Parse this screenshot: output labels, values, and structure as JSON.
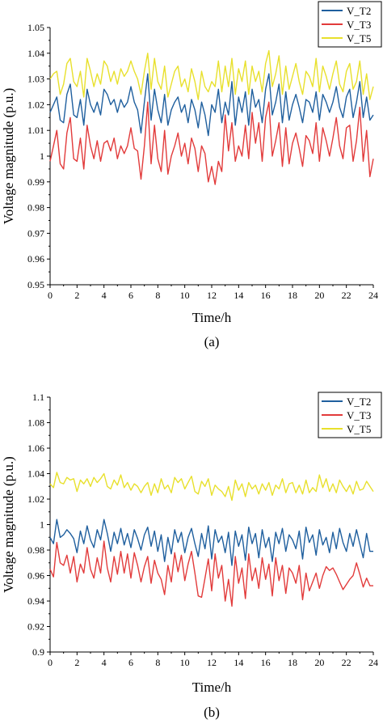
{
  "chart_data": [
    {
      "type": "line",
      "panel_label": "(a)",
      "xlabel": "Time/h",
      "ylabel": "Voltage magnitude (p.u.)",
      "xlim": [
        0,
        24
      ],
      "ylim": [
        0.95,
        1.05
      ],
      "xticks": [
        0,
        2,
        4,
        6,
        8,
        10,
        12,
        14,
        16,
        18,
        20,
        22,
        24
      ],
      "xtick_labels": [
        "0",
        "2",
        "4",
        "6",
        "8",
        "10",
        "12",
        "14",
        "16",
        "18",
        "20",
        "22",
        "24"
      ],
      "yticks": [
        0.95,
        0.96,
        0.97,
        0.98,
        0.99,
        1.0,
        1.01,
        1.02,
        1.03,
        1.04,
        1.05
      ],
      "ytick_labels": [
        "0.95",
        "0.96",
        "0.97",
        "0.98",
        "0.99",
        "1",
        "1.01",
        "1.02",
        "1.03",
        "1.04",
        "1.05"
      ],
      "legend_position": "top-right",
      "x": [
        0.0,
        0.25,
        0.5,
        0.75,
        1.0,
        1.25,
        1.5,
        1.75,
        2.0,
        2.25,
        2.5,
        2.75,
        3.0,
        3.25,
        3.5,
        3.75,
        4.0,
        4.25,
        4.5,
        4.75,
        5.0,
        5.25,
        5.5,
        5.75,
        6.0,
        6.25,
        6.5,
        6.75,
        7.0,
        7.25,
        7.5,
        7.75,
        8.0,
        8.25,
        8.5,
        8.75,
        9.0,
        9.25,
        9.5,
        9.75,
        10.0,
        10.25,
        10.5,
        10.75,
        11.0,
        11.25,
        11.5,
        11.75,
        12.0,
        12.25,
        12.5,
        12.75,
        13.0,
        13.25,
        13.5,
        13.75,
        14.0,
        14.25,
        14.5,
        14.75,
        15.0,
        15.25,
        15.5,
        15.75,
        16.0,
        16.25,
        16.5,
        16.75,
        17.0,
        17.25,
        17.5,
        17.75,
        18.0,
        18.25,
        18.5,
        18.75,
        19.0,
        19.25,
        19.5,
        19.75,
        20.0,
        20.25,
        20.5,
        20.75,
        21.0,
        21.25,
        21.5,
        21.75,
        22.0,
        22.25,
        22.5,
        22.75,
        23.0,
        23.25,
        23.5,
        23.75,
        24.0
      ],
      "series": [
        {
          "name": "V_T2",
          "color": "#1f5f9e",
          "values": [
            1.017,
            1.02,
            1.023,
            1.014,
            1.013,
            1.024,
            1.028,
            1.016,
            1.015,
            1.022,
            1.012,
            1.026,
            1.02,
            1.017,
            1.021,
            1.016,
            1.026,
            1.024,
            1.02,
            1.022,
            1.017,
            1.022,
            1.019,
            1.021,
            1.027,
            1.021,
            1.018,
            1.009,
            1.021,
            1.032,
            1.014,
            1.026,
            1.018,
            1.013,
            1.024,
            1.012,
            1.018,
            1.021,
            1.023,
            1.017,
            1.02,
            1.013,
            1.022,
            1.018,
            1.011,
            1.021,
            1.016,
            1.008,
            1.02,
            1.017,
            1.026,
            1.013,
            1.021,
            1.016,
            1.029,
            1.012,
            1.023,
            1.017,
            1.025,
            1.012,
            1.026,
            1.019,
            1.022,
            1.013,
            1.026,
            1.032,
            1.016,
            1.021,
            1.028,
            1.013,
            1.025,
            1.014,
            1.02,
            1.024,
            1.019,
            1.013,
            1.022,
            1.021,
            1.017,
            1.025,
            1.014,
            1.024,
            1.021,
            1.017,
            1.021,
            1.027,
            1.019,
            1.015,
            1.023,
            1.026,
            1.015,
            1.021,
            1.029,
            1.015,
            1.023,
            1.014,
            1.016
          ]
        },
        {
          "name": "V_T3",
          "color": "#e23b3b",
          "values": [
            0.998,
            1.004,
            1.01,
            0.997,
            0.995,
            1.009,
            1.015,
            0.999,
            0.998,
            1.007,
            0.995,
            1.012,
            1.004,
            0.999,
            1.006,
            0.998,
            1.005,
            1.006,
            1.002,
            1.007,
            0.999,
            1.004,
            1.001,
            1.004,
            1.011,
            1.003,
            1.002,
            0.991,
            1.004,
            1.021,
            0.997,
            1.012,
            0.999,
            0.994,
            1.01,
            0.993,
            1.0,
            1.004,
            1.009,
            1.0,
            1.005,
            0.997,
            1.007,
            1.003,
            0.994,
            1.004,
            1.001,
            0.99,
            0.996,
            0.989,
            0.998,
            0.994,
            1.016,
            1.002,
            1.013,
            0.998,
            1.004,
            1.0,
            1.012,
            0.999,
            1.017,
            1.005,
            1.013,
            0.998,
            1.015,
            1.021,
            1.0,
            1.006,
            1.013,
            0.996,
            1.011,
            0.997,
            1.005,
            1.009,
            1.003,
            0.996,
            1.008,
            1.006,
            1.001,
            1.013,
            0.998,
            1.011,
            1.006,
            1.0,
            1.007,
            1.015,
            1.004,
            0.999,
            1.011,
            1.012,
            0.998,
            1.006,
            1.019,
            0.998,
            1.01,
            0.992,
            0.999
          ]
        },
        {
          "name": "V_T5",
          "color": "#e8e02c",
          "values": [
            1.03,
            1.032,
            1.033,
            1.024,
            1.028,
            1.036,
            1.038,
            1.029,
            1.027,
            1.033,
            1.023,
            1.038,
            1.033,
            1.027,
            1.032,
            1.028,
            1.037,
            1.035,
            1.029,
            1.033,
            1.028,
            1.034,
            1.031,
            1.033,
            1.037,
            1.033,
            1.03,
            1.024,
            1.033,
            1.04,
            1.026,
            1.038,
            1.029,
            1.026,
            1.035,
            1.023,
            1.028,
            1.033,
            1.035,
            1.027,
            1.03,
            1.025,
            1.034,
            1.029,
            1.022,
            1.033,
            1.027,
            1.025,
            1.029,
            1.027,
            1.037,
            1.025,
            1.035,
            1.027,
            1.038,
            1.024,
            1.034,
            1.029,
            1.037,
            1.024,
            1.035,
            1.029,
            1.033,
            1.025,
            1.036,
            1.041,
            1.027,
            1.032,
            1.039,
            1.024,
            1.035,
            1.026,
            1.031,
            1.036,
            1.029,
            1.024,
            1.033,
            1.031,
            1.027,
            1.038,
            1.025,
            1.035,
            1.031,
            1.026,
            1.032,
            1.037,
            1.028,
            1.025,
            1.033,
            1.036,
            1.026,
            1.029,
            1.037,
            1.024,
            1.032,
            1.022,
            1.027
          ]
        }
      ]
    },
    {
      "type": "line",
      "panel_label": "(b)",
      "xlabel": "Time/h",
      "ylabel": "Voltage magnitude (p.u.)",
      "xlim": [
        0,
        24
      ],
      "ylim": [
        0.9,
        1.1
      ],
      "xticks": [
        0,
        2,
        4,
        6,
        8,
        10,
        12,
        14,
        16,
        18,
        20,
        22,
        24
      ],
      "xtick_labels": [
        "0",
        "2",
        "4",
        "6",
        "8",
        "10",
        "12",
        "14",
        "16",
        "18",
        "20",
        "22",
        "24"
      ],
      "yticks": [
        0.9,
        0.92,
        0.94,
        0.96,
        0.98,
        1.0,
        1.02,
        1.04,
        1.06,
        1.08,
        1.1
      ],
      "ytick_labels": [
        "0.9",
        "0.92",
        "0.94",
        "0.96",
        "0.98",
        "1",
        "1.02",
        "1.04",
        "1.06",
        "1.08",
        "1.1"
      ],
      "legend_position": "top-right",
      "x": [
        0.0,
        0.25,
        0.5,
        0.75,
        1.0,
        1.25,
        1.5,
        1.75,
        2.0,
        2.25,
        2.5,
        2.75,
        3.0,
        3.25,
        3.5,
        3.75,
        4.0,
        4.25,
        4.5,
        4.75,
        5.0,
        5.25,
        5.5,
        5.75,
        6.0,
        6.25,
        6.5,
        6.75,
        7.0,
        7.25,
        7.5,
        7.75,
        8.0,
        8.25,
        8.5,
        8.75,
        9.0,
        9.25,
        9.5,
        9.75,
        10.0,
        10.25,
        10.5,
        10.75,
        11.0,
        11.25,
        11.5,
        11.75,
        12.0,
        12.25,
        12.5,
        12.75,
        13.0,
        13.25,
        13.5,
        13.75,
        14.0,
        14.25,
        14.5,
        14.75,
        15.0,
        15.25,
        15.5,
        15.75,
        16.0,
        16.25,
        16.5,
        16.75,
        17.0,
        17.25,
        17.5,
        17.75,
        18.0,
        18.25,
        18.5,
        18.75,
        19.0,
        19.25,
        19.5,
        19.75,
        20.0,
        20.25,
        20.5,
        20.75,
        21.0,
        21.25,
        21.5,
        21.75,
        22.0,
        22.25,
        22.5,
        22.75,
        23.0,
        23.25,
        23.5,
        23.75,
        24.0
      ],
      "series": [
        {
          "name": "V_T2",
          "color": "#1f5f9e",
          "values": [
            0.99,
            0.985,
            1.004,
            0.99,
            0.992,
            0.996,
            0.993,
            0.989,
            0.978,
            0.995,
            0.985,
            0.999,
            0.988,
            0.982,
            0.996,
            0.988,
            1.004,
            0.993,
            0.979,
            0.994,
            0.985,
            0.997,
            0.984,
            0.993,
            0.982,
            0.996,
            0.989,
            0.98,
            0.992,
            0.998,
            0.983,
            0.995,
            0.979,
            0.992,
            0.971,
            0.99,
            0.977,
            0.996,
            0.986,
            0.994,
            0.978,
            0.99,
            0.997,
            0.985,
            0.975,
            0.993,
            0.981,
            0.999,
            0.973,
            0.996,
            0.986,
            0.991,
            0.978,
            0.994,
            0.968,
            0.995,
            0.983,
            0.992,
            0.972,
            0.998,
            0.985,
            0.993,
            0.974,
            0.996,
            0.982,
            0.99,
            0.971,
            0.994,
            0.985,
            0.997,
            0.979,
            0.992,
            0.988,
            0.981,
            0.995,
            0.973,
            0.998,
            0.986,
            0.992,
            0.976,
            0.996,
            0.984,
            0.99,
            0.978,
            0.994,
            0.981,
            0.997,
            0.986,
            0.979,
            0.993,
            0.983,
            0.996,
            0.985,
            0.974,
            0.993,
            0.979,
            0.979
          ]
        },
        {
          "name": "V_T3",
          "color": "#e23b3b",
          "values": [
            0.965,
            0.959,
            0.986,
            0.97,
            0.968,
            0.976,
            0.962,
            0.975,
            0.955,
            0.969,
            0.962,
            0.982,
            0.965,
            0.958,
            0.974,
            0.962,
            0.987,
            0.966,
            0.955,
            0.975,
            0.961,
            0.979,
            0.962,
            0.977,
            0.958,
            0.978,
            0.968,
            0.955,
            0.967,
            0.975,
            0.954,
            0.972,
            0.962,
            0.957,
            0.945,
            0.968,
            0.955,
            0.978,
            0.963,
            0.976,
            0.956,
            0.969,
            0.979,
            0.962,
            0.944,
            0.943,
            0.958,
            0.973,
            0.948,
            0.977,
            0.958,
            0.968,
            0.94,
            0.957,
            0.936,
            0.975,
            0.954,
            0.966,
            0.942,
            0.977,
            0.956,
            0.966,
            0.95,
            0.974,
            0.957,
            0.969,
            0.944,
            0.974,
            0.956,
            0.968,
            0.946,
            0.966,
            0.962,
            0.954,
            0.968,
            0.941,
            0.962,
            0.948,
            0.955,
            0.962,
            0.95,
            0.96,
            0.967,
            0.964,
            0.966,
            0.961,
            0.955,
            0.949,
            0.953,
            0.957,
            0.96,
            0.97,
            0.961,
            0.951,
            0.958,
            0.952,
            0.952
          ]
        },
        {
          "name": "V_T5",
          "color": "#e8e02c",
          "values": [
            1.032,
            1.029,
            1.041,
            1.033,
            1.032,
            1.037,
            1.035,
            1.036,
            1.026,
            1.035,
            1.032,
            1.036,
            1.03,
            1.037,
            1.033,
            1.036,
            1.04,
            1.03,
            1.028,
            1.035,
            1.031,
            1.039,
            1.029,
            1.033,
            1.027,
            1.032,
            1.03,
            1.025,
            1.03,
            1.033,
            1.023,
            1.032,
            1.025,
            1.036,
            1.028,
            1.031,
            1.025,
            1.037,
            1.033,
            1.036,
            1.028,
            1.033,
            1.038,
            1.026,
            1.024,
            1.034,
            1.03,
            1.036,
            1.023,
            1.031,
            1.028,
            1.026,
            1.022,
            1.03,
            1.019,
            1.035,
            1.027,
            1.032,
            1.022,
            1.033,
            1.028,
            1.031,
            1.024,
            1.032,
            1.027,
            1.033,
            1.023,
            1.031,
            1.028,
            1.036,
            1.025,
            1.032,
            1.033,
            1.025,
            1.031,
            1.024,
            1.035,
            1.025,
            1.029,
            1.026,
            1.039,
            1.029,
            1.036,
            1.026,
            1.032,
            1.025,
            1.035,
            1.03,
            1.026,
            1.031,
            1.024,
            1.034,
            1.027,
            1.028,
            1.034,
            1.03,
            1.026
          ]
        }
      ]
    }
  ]
}
